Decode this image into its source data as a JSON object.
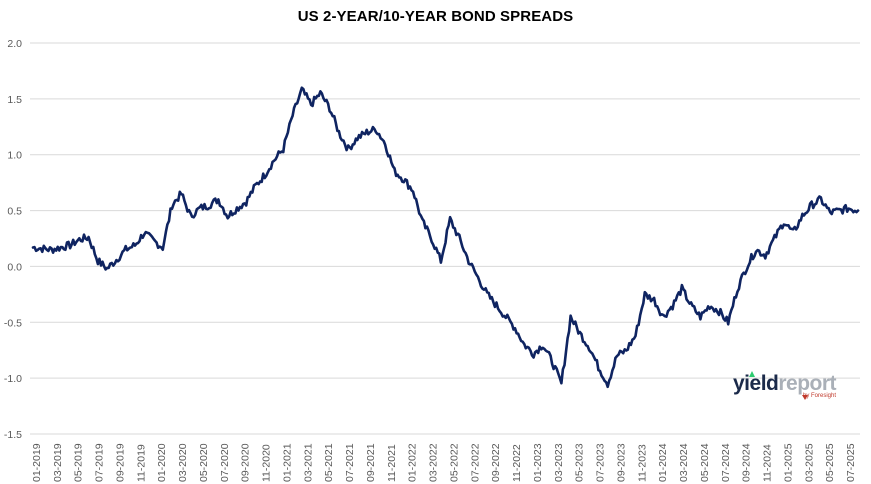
{
  "chart_data": {
    "type": "line",
    "title": "US 2-YEAR/10-YEAR BOND SPREADS",
    "xlabel": "",
    "ylabel": "",
    "ylim": [
      -1.5,
      2.0
    ],
    "yticks": [
      "2.0",
      "1.5",
      "1.0",
      "0.5",
      "0.0",
      "-0.5",
      "-1.0",
      "-1.5"
    ],
    "ytick_values": [
      2.0,
      1.5,
      1.0,
      0.5,
      0.0,
      -0.5,
      -1.0,
      -1.5
    ],
    "xticks": [
      "01-2019",
      "03-2019",
      "05-2019",
      "07-2019",
      "09-2019",
      "11-2019",
      "01-2020",
      "03-2020",
      "05-2020",
      "07-2020",
      "09-2020",
      "11-2020",
      "01-2021",
      "03-2021",
      "05-2021",
      "07-2021",
      "09-2021",
      "11-2021",
      "01-2022",
      "03-2022",
      "05-2022",
      "07-2022",
      "09-2022",
      "11-2022",
      "01-2023",
      "03-2023",
      "05-2023",
      "07-2023",
      "09-2023",
      "11-2023",
      "01-2024",
      "03-2024",
      "05-2024",
      "07-2024",
      "09-2024",
      "11-2024",
      "01-2025",
      "03-2025",
      "05-2025",
      "07-2025"
    ],
    "grid": "horizontal",
    "legend": "none",
    "line_color": "#0f2461",
    "series": [
      {
        "x": [
          "2019-01",
          "2019-02",
          "2019-03",
          "2019-04",
          "2019-05",
          "2019-06",
          "2019-07",
          "2019-08",
          "2019-08b",
          "2019-09",
          "2019-10",
          "2019-11",
          "2019-12",
          "2020-01",
          "2020-02",
          "2020-03",
          "2020-03b",
          "2020-04",
          "2020-05",
          "2020-06",
          "2020-06b",
          "2020-07",
          "2020-08",
          "2020-09",
          "2020-10",
          "2020-11",
          "2020-12",
          "2021-01",
          "2021-02",
          "2021-03",
          "2021-03b",
          "2021-04",
          "2021-05",
          "2021-06",
          "2021-06b",
          "2021-07",
          "2021-08",
          "2021-09",
          "2021-10",
          "2021-11",
          "2021-12",
          "2022-01",
          "2022-02",
          "2022-03",
          "2022-04",
          "2022-04b",
          "2022-05",
          "2022-06",
          "2022-06b",
          "2022-07",
          "2022-08",
          "2022-09",
          "2022-10",
          "2022-11",
          "2022-12",
          "2023-01",
          "2023-02",
          "2023-03",
          "2023-03b",
          "2023-04",
          "2023-05",
          "2023-06",
          "2023-07",
          "2023-07b",
          "2023-08",
          "2023-09",
          "2023-10",
          "2023-11",
          "2023-12",
          "2024-01",
          "2024-02",
          "2024-03",
          "2024-04",
          "2024-05",
          "2024-06",
          "2024-07",
          "2024-08",
          "2024-09",
          "2024-10",
          "2024-11",
          "2024-12",
          "2025-01",
          "2025-02",
          "2025-03",
          "2025-04",
          "2025-05",
          "2025-06",
          "2025-07",
          "2025-08",
          "2025-09"
        ],
        "values": [
          0.17,
          0.16,
          0.15,
          0.17,
          0.19,
          0.24,
          0.26,
          0.05,
          -0.02,
          0.06,
          0.15,
          0.19,
          0.3,
          0.23,
          0.17,
          0.55,
          0.65,
          0.45,
          0.52,
          0.55,
          0.6,
          0.45,
          0.52,
          0.58,
          0.72,
          0.82,
          0.95,
          1.05,
          1.35,
          1.58,
          1.45,
          1.55,
          1.42,
          1.2,
          1.05,
          1.15,
          1.2,
          1.23,
          1.1,
          0.85,
          0.78,
          0.68,
          0.4,
          0.25,
          0.05,
          0.42,
          0.25,
          0.05,
          -0.1,
          -0.25,
          -0.35,
          -0.45,
          -0.55,
          -0.7,
          -0.78,
          -0.7,
          -0.85,
          -1.05,
          -0.45,
          -0.6,
          -0.72,
          -0.9,
          -1.05,
          -0.8,
          -0.75,
          -0.62,
          -0.25,
          -0.3,
          -0.45,
          -0.35,
          -0.2,
          -0.35,
          -0.45,
          -0.35,
          -0.4,
          -0.5,
          -0.2,
          0.0,
          0.15,
          0.1,
          0.25,
          0.4,
          0.3,
          0.45,
          0.55,
          0.6,
          0.48,
          0.5,
          0.52,
          0.5
        ]
      }
    ]
  },
  "watermark": {
    "brand_part1": "yield",
    "brand_part2": "report",
    "tagline": "by Foresight"
  }
}
